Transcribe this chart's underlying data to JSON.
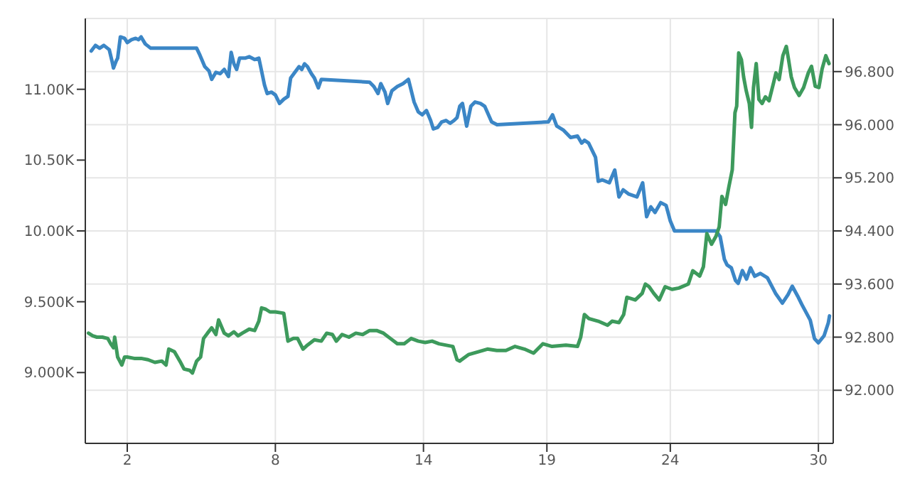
{
  "chart_data": {
    "type": "line",
    "grid": true,
    "marker": "none",
    "line_style": "solid",
    "xlim": [
      0.3,
      30.6
    ],
    "xticks": [
      2,
      8,
      14,
      19,
      24,
      30
    ],
    "ylim": [
      8500,
      11500
    ],
    "yticks": [
      {
        "value": 9000,
        "label": "9.000K"
      },
      {
        "value": 9500,
        "label": "9.500K"
      },
      {
        "value": 10000,
        "label": "10.00K"
      },
      {
        "value": 10500,
        "label": "10.50K"
      },
      {
        "value": 11000,
        "label": "11.00K"
      }
    ],
    "y2lim": [
      91.2,
      97.6
    ],
    "y2ticks": [
      {
        "value": 92,
        "label": "92.000"
      },
      {
        "value": 92.8,
        "label": "92.800"
      },
      {
        "value": 93.6,
        "label": "93.600"
      },
      {
        "value": 94.4,
        "label": "94.400"
      },
      {
        "value": 95.2,
        "label": "95.200"
      },
      {
        "value": 96,
        "label": "96.000"
      },
      {
        "value": 96.8,
        "label": "96.800"
      }
    ],
    "series": [
      {
        "color": "#3b86c6",
        "x": [
          0.54,
          0.71,
          0.88,
          1.05,
          1.27,
          1.38,
          1.44,
          1.55,
          1.61,
          1.72,
          1.89,
          2.0,
          2.17,
          2.34,
          2.45,
          2.56,
          2.73,
          2.95,
          4.81,
          4.92,
          5.14,
          5.31,
          5.42,
          5.59,
          5.76,
          5.93,
          6.1,
          6.21,
          6.32,
          6.43,
          6.55,
          6.77,
          6.94,
          7.16,
          7.33,
          7.44,
          7.56,
          7.67,
          7.84,
          8.0,
          8.17,
          8.34,
          8.51,
          8.62,
          8.79,
          8.96,
          9.07,
          9.18,
          9.3,
          9.46,
          9.58,
          9.74,
          9.86,
          11.82,
          11.99,
          12.16,
          12.27,
          12.44,
          12.55,
          12.72,
          12.94,
          13.17,
          13.39,
          13.62,
          13.79,
          13.95,
          14.12,
          14.29,
          14.4,
          14.57,
          14.74,
          14.91,
          15.08,
          15.24,
          15.36,
          15.47,
          15.58,
          15.75,
          15.92,
          16.09,
          16.31,
          16.48,
          16.76,
          16.98,
          19.06,
          19.23,
          19.4,
          19.68,
          19.96,
          20.24,
          20.41,
          20.52,
          20.69,
          20.97,
          21.08,
          21.25,
          21.53,
          21.75,
          21.92,
          22.09,
          22.32,
          22.65,
          22.88,
          23.04,
          23.21,
          23.38,
          23.61,
          23.83,
          24.0,
          24.17,
          25.85,
          26.02,
          26.19,
          26.3,
          26.47,
          26.64,
          26.75,
          26.92,
          27.09,
          27.25,
          27.42,
          27.65,
          27.93,
          28.26,
          28.54,
          28.77,
          28.94,
          29.16,
          29.33,
          29.67,
          29.84,
          30.0,
          30.23,
          30.4,
          30.45
        ],
        "values": [
          11270,
          11310,
          11290,
          11310,
          11280,
          11200,
          11150,
          11200,
          11220,
          11370,
          11360,
          11330,
          11350,
          11360,
          11350,
          11370,
          11320,
          11290,
          11290,
          11250,
          11160,
          11130,
          11070,
          11120,
          11110,
          11140,
          11090,
          11260,
          11180,
          11140,
          11220,
          11220,
          11230,
          11210,
          11220,
          11130,
          11030,
          10970,
          10980,
          10960,
          10900,
          10930,
          10950,
          11080,
          11120,
          11160,
          11140,
          11180,
          11160,
          11110,
          11080,
          11010,
          11070,
          11050,
          11020,
          10970,
          11040,
          10980,
          10900,
          10990,
          11020,
          11040,
          11070,
          10910,
          10840,
          10820,
          10850,
          10780,
          10720,
          10730,
          10770,
          10780,
          10760,
          10780,
          10800,
          10880,
          10900,
          10740,
          10880,
          10910,
          10900,
          10880,
          10770,
          10750,
          10770,
          10820,
          10740,
          10710,
          10660,
          10670,
          10620,
          10640,
          10620,
          10520,
          10350,
          10360,
          10340,
          10430,
          10240,
          10290,
          10260,
          10240,
          10340,
          10100,
          10170,
          10130,
          10200,
          10180,
          10070,
          10000,
          10000,
          9960,
          9800,
          9760,
          9740,
          9650,
          9630,
          9720,
          9660,
          9740,
          9680,
          9700,
          9670,
          9560,
          9490,
          9550,
          9610,
          9540,
          9480,
          9370,
          9240,
          9210,
          9260,
          9350,
          9400
        ]
      },
      {
        "color": "#3d9a5c",
        "axis": "y2",
        "x": [
          0.43,
          0.6,
          0.77,
          0.99,
          1.21,
          1.33,
          1.44,
          1.49,
          1.61,
          1.78,
          1.89,
          2.0,
          2.28,
          2.56,
          2.84,
          3.12,
          3.4,
          3.57,
          3.68,
          3.91,
          4.13,
          4.3,
          4.53,
          4.64,
          4.81,
          4.97,
          5.09,
          5.25,
          5.42,
          5.59,
          5.7,
          5.93,
          6.1,
          6.32,
          6.49,
          6.66,
          6.94,
          7.16,
          7.33,
          7.44,
          7.61,
          7.78,
          8.0,
          8.34,
          8.51,
          8.73,
          8.9,
          9.12,
          9.3,
          9.58,
          9.86,
          10.08,
          10.31,
          10.47,
          10.7,
          10.98,
          11.26,
          11.54,
          11.82,
          12.1,
          12.38,
          12.66,
          12.94,
          13.22,
          13.5,
          13.79,
          14.07,
          14.35,
          14.63,
          15.19,
          15.36,
          15.47,
          15.84,
          16.22,
          16.59,
          16.97,
          17.34,
          17.71,
          18.09,
          18.46,
          18.84,
          19.21,
          19.77,
          20.24,
          20.37,
          20.52,
          20.7,
          21.08,
          21.46,
          21.64,
          21.92,
          22.11,
          22.24,
          22.58,
          22.86,
          22.99,
          23.14,
          23.33,
          23.55,
          23.79,
          24.07,
          24.35,
          24.73,
          24.91,
          25.19,
          25.34,
          25.48,
          25.67,
          25.85,
          25.98,
          26.09,
          26.24,
          26.37,
          26.51,
          26.62,
          26.69,
          26.77,
          26.88,
          26.97,
          27.07,
          27.2,
          27.29,
          27.37,
          27.48,
          27.59,
          27.72,
          27.85,
          28.0,
          28.19,
          28.28,
          28.41,
          28.56,
          28.7,
          28.79,
          28.9,
          29.03,
          29.22,
          29.4,
          29.59,
          29.72,
          29.87,
          30.02,
          30.15,
          30.3,
          30.43
        ],
        "values": [
          92.86,
          92.82,
          92.8,
          92.8,
          92.78,
          92.7,
          92.64,
          92.8,
          92.5,
          92.38,
          92.5,
          92.5,
          92.48,
          92.48,
          92.46,
          92.42,
          92.44,
          92.38,
          92.62,
          92.58,
          92.44,
          92.32,
          92.3,
          92.26,
          92.44,
          92.5,
          92.78,
          92.86,
          92.94,
          92.84,
          93.06,
          92.86,
          92.82,
          92.88,
          92.82,
          92.86,
          92.92,
          92.9,
          93.04,
          93.24,
          93.22,
          93.18,
          93.18,
          93.16,
          92.74,
          92.78,
          92.78,
          92.62,
          92.68,
          92.76,
          92.74,
          92.86,
          92.84,
          92.74,
          92.84,
          92.8,
          92.86,
          92.84,
          92.9,
          92.9,
          92.86,
          92.78,
          92.7,
          92.7,
          92.78,
          92.74,
          92.72,
          92.74,
          92.7,
          92.66,
          92.46,
          92.44,
          92.54,
          92.58,
          92.62,
          92.6,
          92.6,
          92.66,
          92.62,
          92.56,
          92.7,
          92.66,
          92.68,
          92.66,
          92.8,
          93.14,
          93.08,
          93.04,
          92.98,
          93.04,
          93.02,
          93.14,
          93.4,
          93.36,
          93.46,
          93.6,
          93.56,
          93.46,
          93.36,
          93.56,
          93.52,
          93.54,
          93.6,
          93.8,
          93.72,
          93.86,
          94.36,
          94.2,
          94.32,
          94.46,
          94.92,
          94.8,
          95.06,
          95.32,
          96.18,
          96.28,
          97.08,
          96.98,
          96.72,
          96.52,
          96.32,
          95.96,
          96.56,
          96.92,
          96.38,
          96.32,
          96.42,
          96.36,
          96.64,
          96.78,
          96.68,
          97.04,
          97.18,
          96.98,
          96.72,
          96.56,
          96.44,
          96.56,
          96.78,
          96.88,
          96.58,
          96.56,
          96.84,
          97.04,
          96.92
        ]
      }
    ]
  }
}
